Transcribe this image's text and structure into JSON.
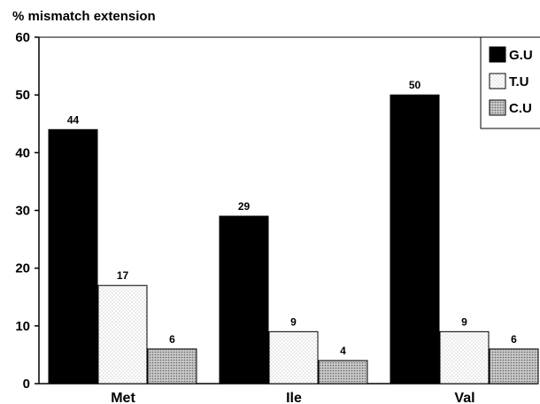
{
  "chart_data": {
    "type": "bar",
    "title": "% mismatch extension",
    "ylabel": "",
    "xlabel": "",
    "ylim": [
      0,
      60
    ],
    "yticks": [
      0,
      10,
      20,
      30,
      40,
      50,
      60
    ],
    "categories": [
      "Met",
      "Ile",
      "Val"
    ],
    "series": [
      {
        "name": "G.U",
        "values": [
          44,
          29,
          50
        ],
        "pattern": "solid-black"
      },
      {
        "name": "T.U",
        "values": [
          17,
          9,
          9
        ],
        "pattern": "light-dots"
      },
      {
        "name": "C.U",
        "values": [
          6,
          4,
          6
        ],
        "pattern": "dark-dots"
      }
    ],
    "data_labels": true,
    "legend_position": "top-right",
    "grid": false
  },
  "colors": {
    "axis": "#000000",
    "bar_black": "#000000",
    "bar_light": "#ffffff",
    "bar_shaded": "#bdbdbd"
  }
}
